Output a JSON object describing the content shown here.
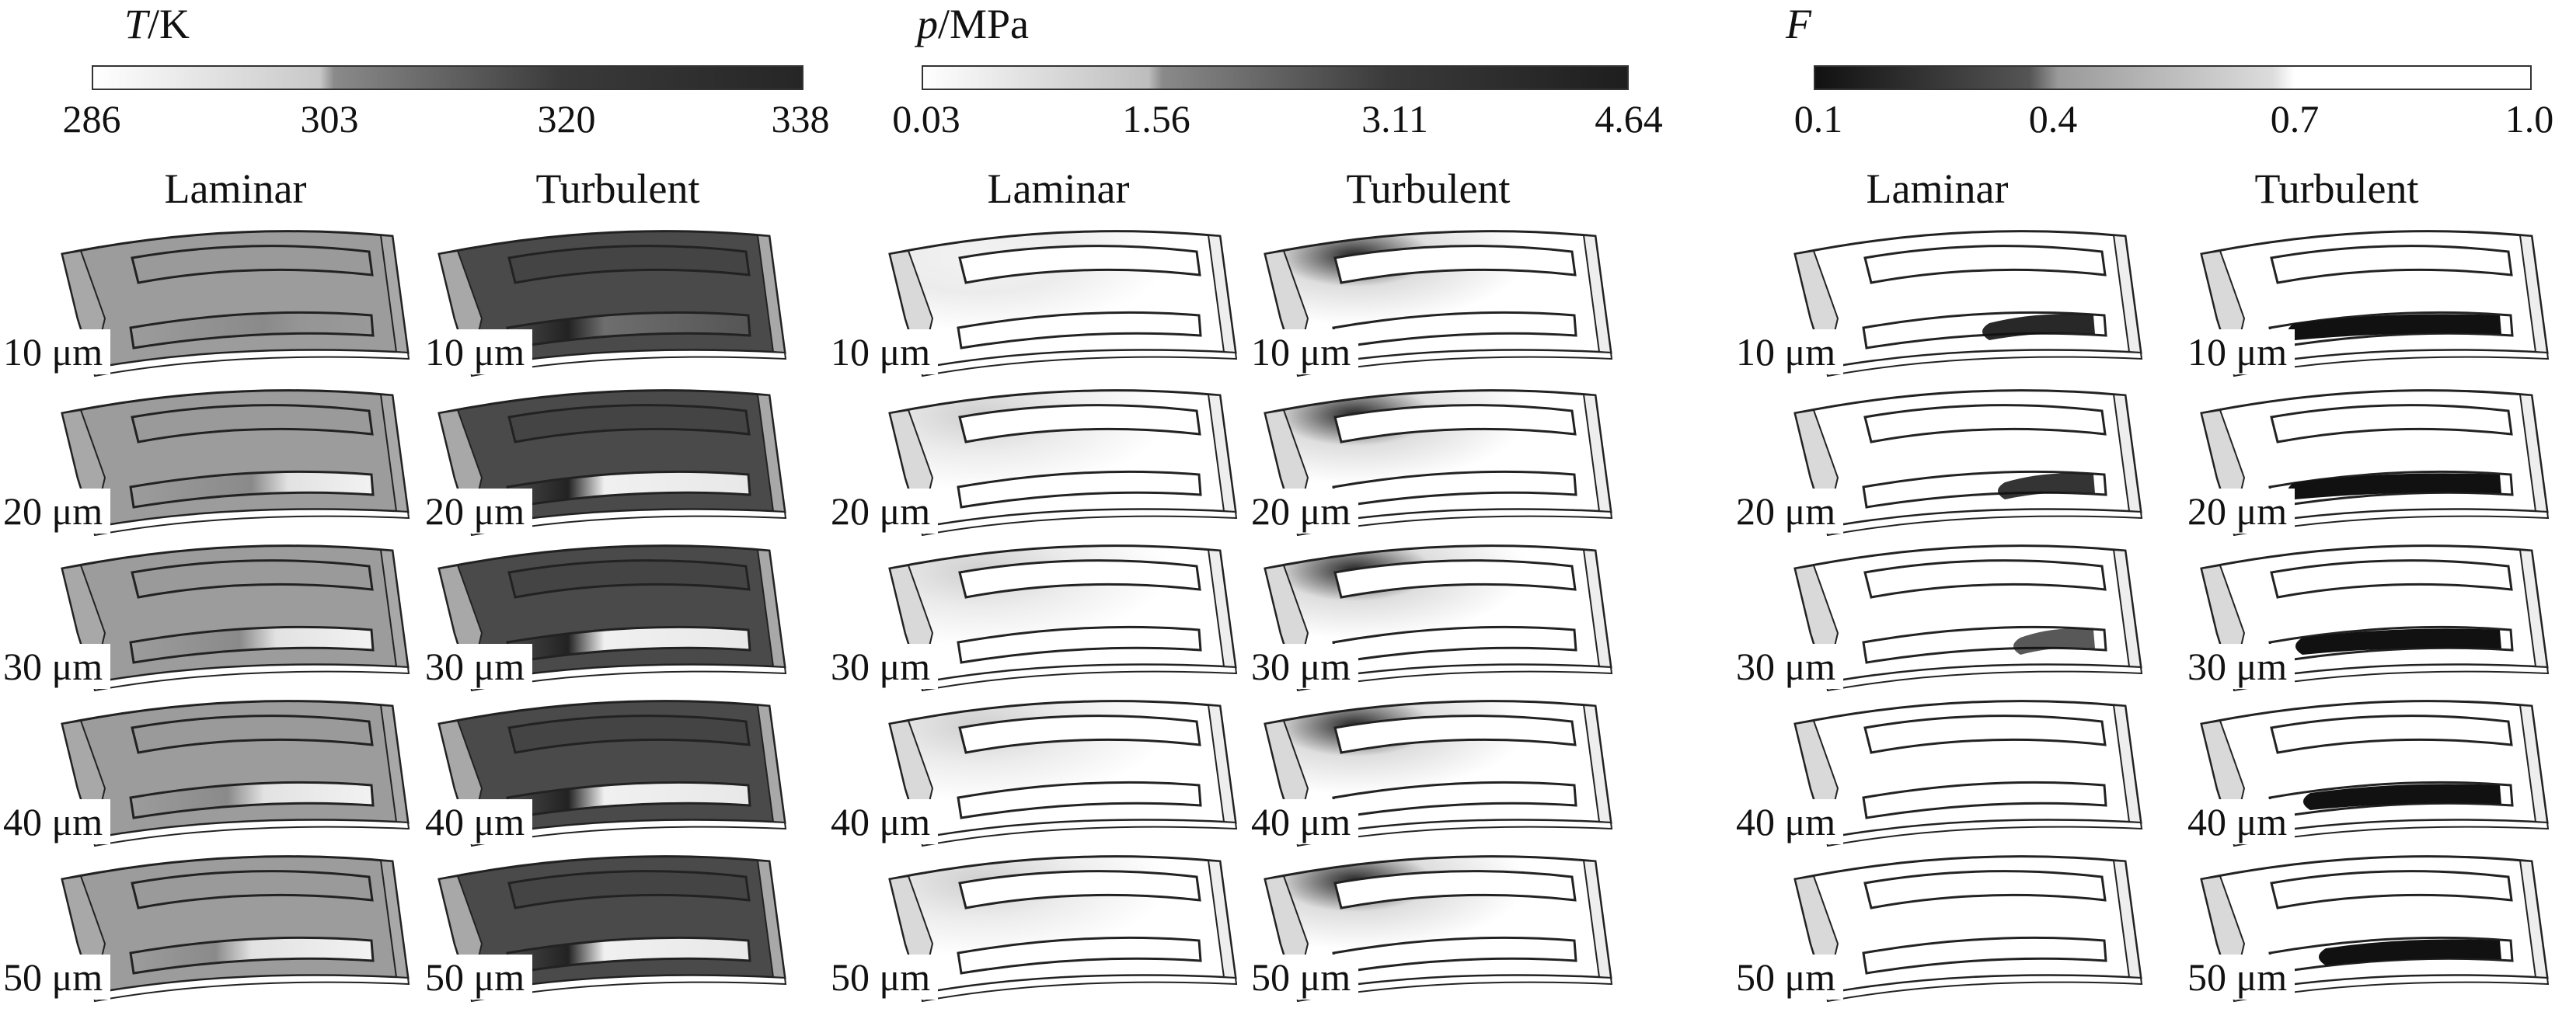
{
  "figure": {
    "groups": [
      {
        "id": "temperature",
        "variable": "T",
        "unit": "/K",
        "ticks": [
          "286",
          "303",
          "320",
          "338"
        ],
        "columns": [
          "Laminar",
          "Turbulent"
        ]
      },
      {
        "id": "pressure",
        "variable": "p",
        "unit": "/MPa",
        "ticks": [
          "0.03",
          "1.56",
          "3.11",
          "4.64"
        ],
        "columns": [
          "Laminar",
          "Turbulent"
        ]
      },
      {
        "id": "fraction",
        "variable": "F",
        "unit": "",
        "ticks": [
          "0.1",
          "0.4",
          "0.7",
          "1.0"
        ],
        "columns": [
          "Laminar",
          "Turbulent"
        ]
      }
    ],
    "rows": [
      "10 μm",
      "20 μm",
      "30 μm",
      "40 μm",
      "50 μm"
    ],
    "colors": {
      "temperature_bar": [
        "#ffffff",
        "#9a9a9a",
        "#555555",
        "#2a2a2a"
      ],
      "pressure_bar": [
        "#ffffff",
        "#a8a8a8",
        "#505050",
        "#262626"
      ],
      "fraction_bar": [
        "#111111",
        "#888888",
        "#e6e6e6",
        "#ffffff"
      ],
      "laminar_temperature_fill": "#9c9c9c",
      "turbulent_temperature_fill": "#4a4a4a"
    }
  }
}
